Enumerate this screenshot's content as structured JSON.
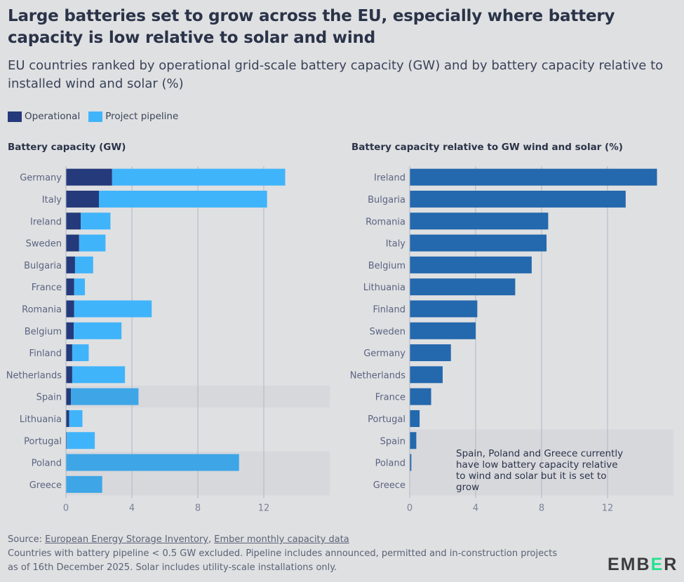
{
  "title": "Large batteries set to grow across the EU, especially where battery capacity is low relative to solar and wind",
  "subtitle": "EU countries ranked by operational grid-scale battery capacity (GW) and by battery capacity relative to installed wind and solar (%)",
  "legend": [
    {
      "label": "Operational",
      "color": "#253a7a"
    },
    {
      "label": "Project pipeline",
      "color": "#40b4fa"
    }
  ],
  "colors": {
    "operational": "#253a7a",
    "pipeline": "#40b4fa",
    "pipeline_highlight": "#3ea6e6",
    "relative": "#2468ad",
    "highlight_band": "#d7d8dc",
    "grid": "#b0b6c6"
  },
  "chart_data": [
    {
      "type": "bar",
      "orientation": "horizontal",
      "stacked": true,
      "title": "Battery capacity (GW)",
      "categories": [
        "Germany",
        "Italy",
        "Ireland",
        "Sweden",
        "Bulgaria",
        "France",
        "Romania",
        "Belgium",
        "Finland",
        "Netherlands",
        "Spain",
        "Lithuania",
        "Portugal",
        "Poland",
        "Greece"
      ],
      "series": [
        {
          "name": "Operational",
          "values": [
            2.8,
            2.0,
            0.9,
            0.8,
            0.55,
            0.5,
            0.5,
            0.47,
            0.38,
            0.38,
            0.3,
            0.2,
            0.05,
            0.0,
            0.0
          ]
        },
        {
          "name": "Project pipeline",
          "values": [
            10.5,
            10.2,
            1.8,
            1.6,
            1.1,
            0.65,
            4.7,
            2.9,
            1.0,
            3.2,
            4.1,
            0.8,
            1.7,
            10.5,
            2.2
          ]
        }
      ],
      "xlim": [
        0,
        16
      ],
      "xticks": [
        "0",
        "4",
        "8",
        "12"
      ],
      "highlighted": [
        "Spain",
        "Poland",
        "Greece"
      ],
      "grid": true
    },
    {
      "type": "bar",
      "orientation": "horizontal",
      "title": "Battery capacity relative to GW wind and solar (%)",
      "categories": [
        "Ireland",
        "Bulgaria",
        "Romania",
        "Italy",
        "Belgium",
        "Lithuania",
        "Finland",
        "Sweden",
        "Germany",
        "Netherlands",
        "France",
        "Portugal",
        "Spain",
        "Poland",
        "Greece"
      ],
      "values": [
        15.0,
        13.1,
        8.4,
        8.3,
        7.4,
        6.4,
        4.1,
        4.0,
        2.5,
        2.0,
        1.3,
        0.6,
        0.4,
        0.1,
        0.0
      ],
      "xlim": [
        0,
        16
      ],
      "xticks": [
        "0",
        "4",
        "8",
        "12"
      ],
      "highlighted": [
        "Spain",
        "Poland",
        "Greece"
      ],
      "annotation": "Spain, Poland and Greece currently have low battery capacity relative to wind and solar but it is set to grow",
      "grid": true
    }
  ],
  "footer": {
    "source_prefix": "Source: ",
    "source_link1": "European Energy Storage Inventory",
    "source_sep": ", ",
    "source_link2": "Ember monthly capacity data",
    "note": "Countries with battery pipeline < 0.5 GW excluded. Pipeline includes announced, permitted and in-construction projects as of 16th December 2025. Solar includes utility-scale installations only."
  },
  "logo": {
    "text": "EMBER"
  }
}
